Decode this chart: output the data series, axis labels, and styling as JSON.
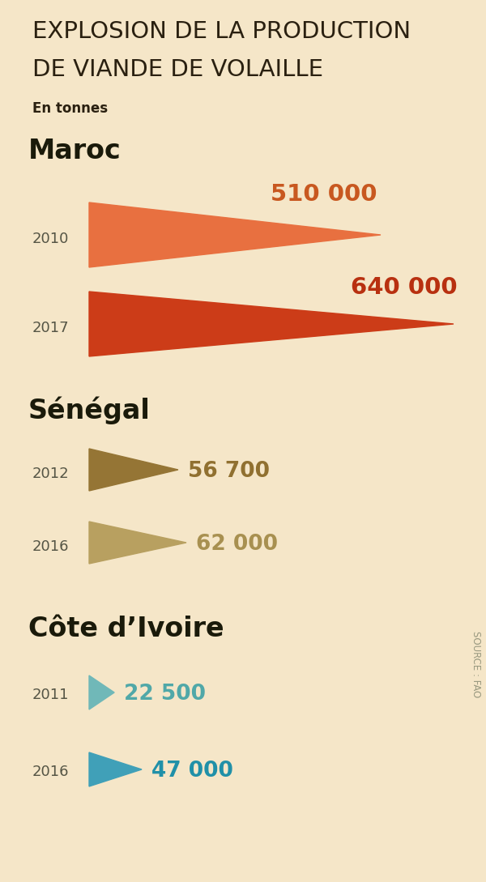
{
  "bg_color": "#f5e6c8",
  "title_line1": "EXPLOSION DE LA PRODUCTION",
  "title_line2": "DE VIANDE DE VOLAILLE",
  "subtitle": "En tonnes",
  "title_color": "#2a2010",
  "title_fontsize": 21,
  "subtitle_fontsize": 12,
  "sections": [
    {
      "country": "Maroc",
      "country_color": "#1a1a0a",
      "country_fontsize": 24,
      "rows": [
        {
          "year": "2010",
          "value": 510000,
          "label": "510 000",
          "triangle_color": "#e87040",
          "label_color": "#c85820",
          "rel_size": 0.8,
          "label_above": true
        },
        {
          "year": "2017",
          "value": 640000,
          "label": "640 000",
          "triangle_color": "#cc3c18",
          "label_color": "#b83010",
          "rel_size": 1.0,
          "label_above": true
        }
      ]
    },
    {
      "country": "Sénégal",
      "country_color": "#1a1a0a",
      "country_fontsize": 24,
      "rows": [
        {
          "year": "2012",
          "value": 56700,
          "label": "56 700",
          "triangle_color": "#957535",
          "label_color": "#907030",
          "rel_size": 0.916,
          "label_above": false
        },
        {
          "year": "2016",
          "value": 62000,
          "label": "62 000",
          "triangle_color": "#b8a060",
          "label_color": "#a89050",
          "rel_size": 1.0,
          "label_above": false
        }
      ]
    },
    {
      "country": "Côte d’Ivoire",
      "country_color": "#1a1a0a",
      "country_fontsize": 24,
      "rows": [
        {
          "year": "2011",
          "value": 22500,
          "label": "22 500",
          "triangle_color": "#70b8b8",
          "label_color": "#50a8a8",
          "rel_size": 0.479,
          "label_above": false
        },
        {
          "year": "2016",
          "value": 47000,
          "label": "47 000",
          "triangle_color": "#40a0b8",
          "label_color": "#2090a8",
          "rel_size": 1.0,
          "label_above": false
        }
      ]
    }
  ],
  "source_text": "SOURCE : FAO",
  "source_color": "#999980",
  "year_color": "#555545",
  "year_fontsize": 13,
  "label_fontsize_maroc": 21,
  "label_fontsize_senegal": 19,
  "label_fontsize_cdi": 19
}
